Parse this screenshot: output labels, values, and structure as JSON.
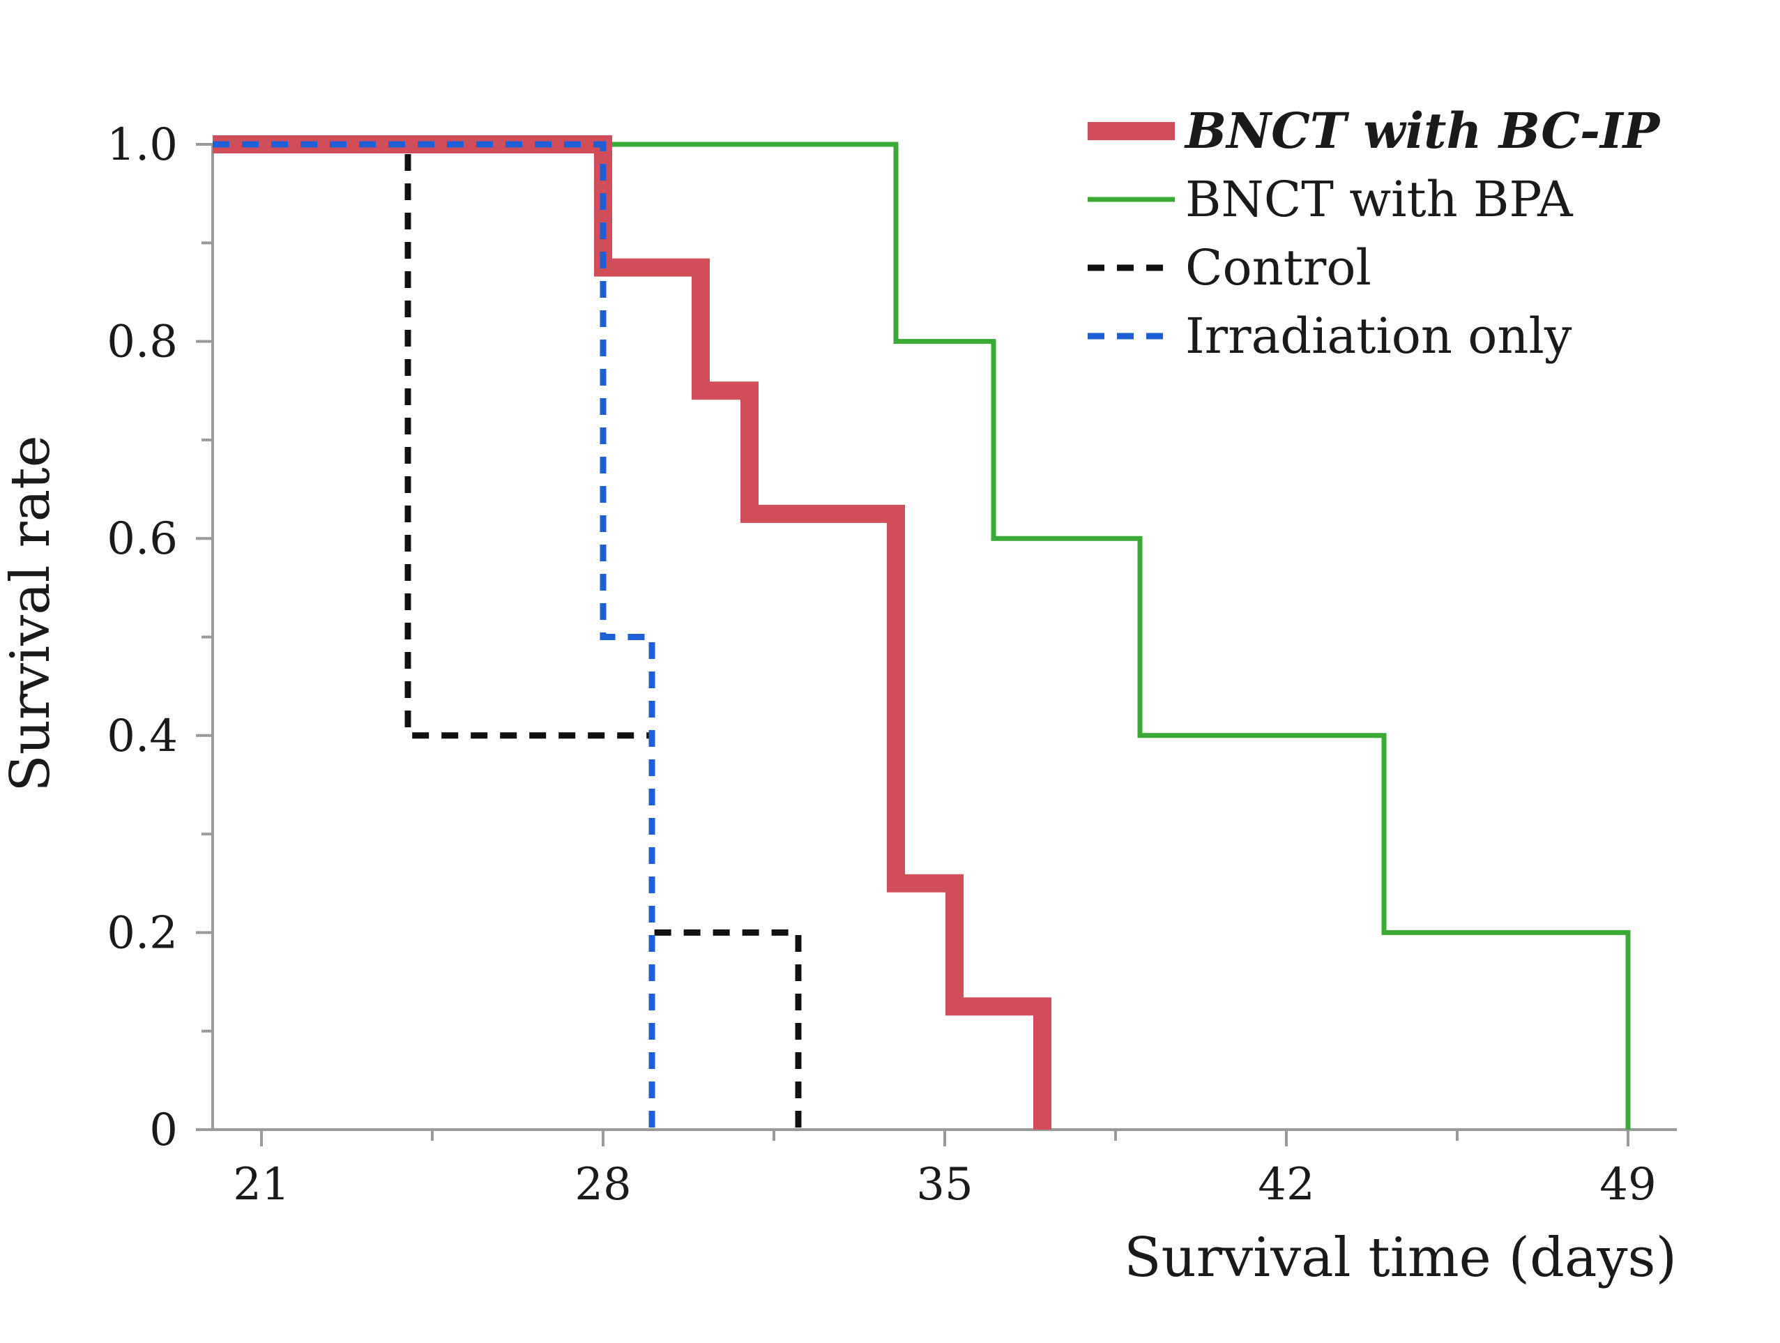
{
  "chart_data": {
    "type": "line",
    "subtype": "kaplan-meier-step",
    "title": "",
    "xlabel": "Survival time (days)",
    "ylabel": "Survival rate",
    "xlim": [
      20,
      50
    ],
    "ylim": [
      0,
      1.0
    ],
    "x_ticks": [
      21,
      28,
      35,
      42,
      49
    ],
    "x_tick_labels": [
      "21",
      "28",
      "35",
      "42",
      "49"
    ],
    "x_minor_ticks": [
      24.5,
      31.5,
      38.5,
      45.5
    ],
    "y_ticks": [
      0,
      0.2,
      0.4,
      0.6,
      0.8,
      1.0
    ],
    "y_tick_labels": [
      "0",
      "0.2",
      "0.4",
      "0.6",
      "0.8",
      "1.0"
    ],
    "y_minor_ticks": [
      0.1,
      0.3,
      0.5,
      0.7,
      0.9
    ],
    "grid": false,
    "legend_position": "top-right",
    "series": [
      {
        "name": "BNCT with BC-IP",
        "color": "#d24d5a",
        "style": "solid-thick",
        "italic_bold_label": true,
        "points": [
          [
            20,
            1.0
          ],
          [
            28,
            1.0
          ],
          [
            28,
            0.875
          ],
          [
            30,
            0.875
          ],
          [
            30,
            0.75
          ],
          [
            31,
            0.75
          ],
          [
            31,
            0.625
          ],
          [
            34,
            0.625
          ],
          [
            34,
            0.25
          ],
          [
            35.2,
            0.25
          ],
          [
            35.2,
            0.125
          ],
          [
            37,
            0.125
          ],
          [
            37,
            0
          ]
        ]
      },
      {
        "name": "BNCT with BPA",
        "color": "#3aa935",
        "style": "solid",
        "italic_bold_label": false,
        "points": [
          [
            20,
            1.0
          ],
          [
            34,
            1.0
          ],
          [
            34,
            0.8
          ],
          [
            36,
            0.8
          ],
          [
            36,
            0.6
          ],
          [
            39,
            0.6
          ],
          [
            39,
            0.4
          ],
          [
            44,
            0.4
          ],
          [
            44,
            0.2
          ],
          [
            49,
            0.2
          ],
          [
            49,
            0
          ]
        ]
      },
      {
        "name": "Control",
        "color": "#111111",
        "style": "dashed",
        "italic_bold_label": false,
        "points": [
          [
            20,
            1.0
          ],
          [
            24,
            1.0
          ],
          [
            24,
            0.4
          ],
          [
            29,
            0.4
          ],
          [
            29,
            0.2
          ],
          [
            32,
            0.2
          ],
          [
            32,
            0
          ]
        ]
      },
      {
        "name": "Irradiation only",
        "color": "#1f5fd6",
        "style": "dashed",
        "italic_bold_label": false,
        "points": [
          [
            20,
            1.0
          ],
          [
            28,
            1.0
          ],
          [
            28,
            0.5
          ],
          [
            29,
            0.5
          ],
          [
            29,
            0
          ]
        ]
      }
    ]
  }
}
